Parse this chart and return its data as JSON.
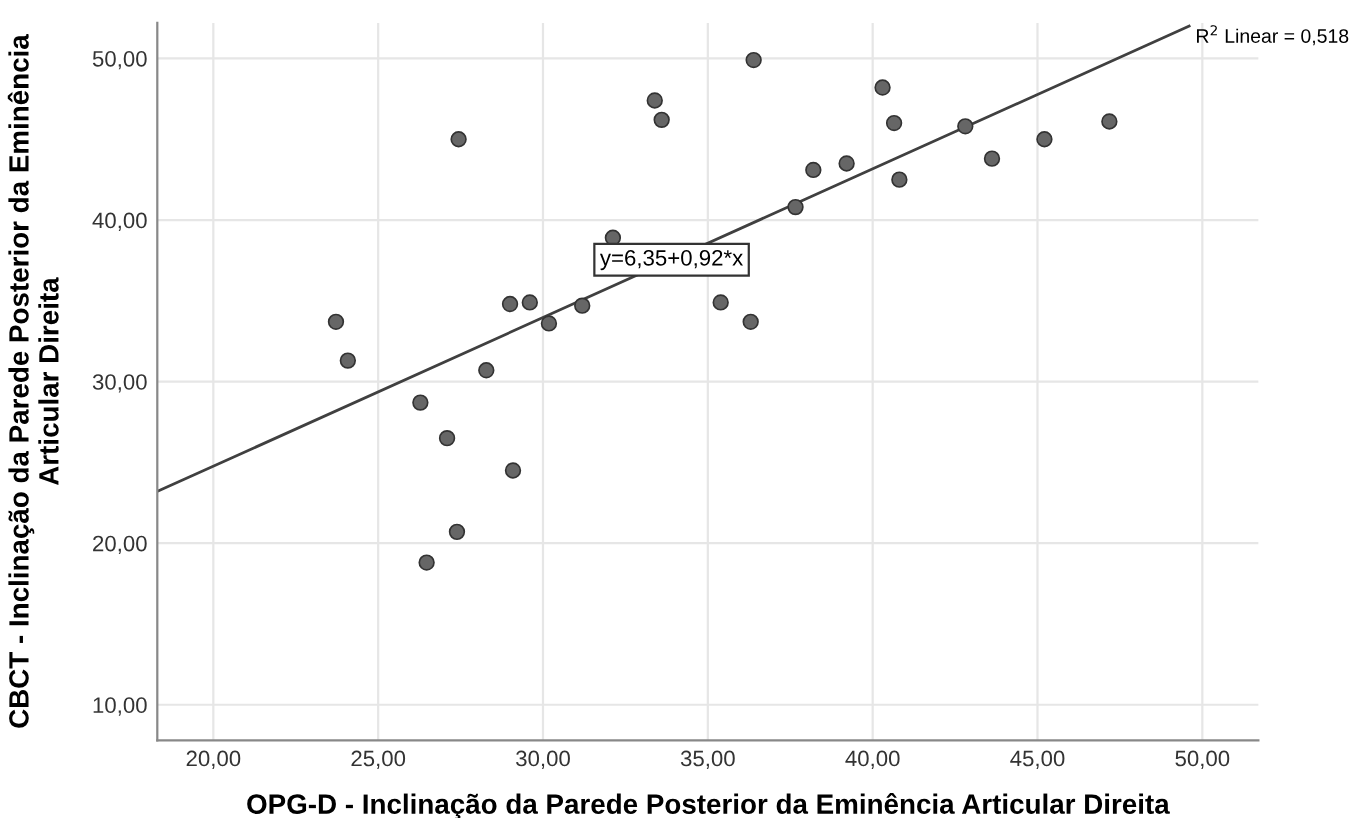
{
  "chart_data": {
    "type": "scatter",
    "xlabel": "OPG-D - Inclinação da Parede Posterior da Eminência Articular Direita",
    "ylabel": "CBCT - Inclinação da Parede Posterior da Eminência\nArticular Direita",
    "xlim": [
      18.3,
      51.7
    ],
    "ylim": [
      7.8,
      52.2
    ],
    "xticks": [
      {
        "value": 20,
        "label": "20,00"
      },
      {
        "value": 25,
        "label": "25,00"
      },
      {
        "value": 30,
        "label": "30,00"
      },
      {
        "value": 35,
        "label": "35,00"
      },
      {
        "value": 40,
        "label": "40,00"
      },
      {
        "value": 45,
        "label": "45,00"
      },
      {
        "value": 50,
        "label": "50,00"
      }
    ],
    "yticks": [
      {
        "value": 10,
        "label": "10,00"
      },
      {
        "value": 20,
        "label": "20,00"
      },
      {
        "value": 30,
        "label": "30,00"
      },
      {
        "value": 40,
        "label": "40,00"
      },
      {
        "value": 50,
        "label": "50,00"
      }
    ],
    "grid": true,
    "series": [
      {
        "marker": "circle",
        "color": "#666666",
        "x": [
          23.72,
          24.08,
          27.44,
          26.28,
          29.0,
          29.6,
          30.18,
          31.19,
          28.28,
          32.12,
          33.39,
          33.6,
          35.39,
          36.39,
          36.3,
          37.66,
          38.2,
          39.21,
          40.3,
          40.65,
          40.81,
          42.81,
          43.62,
          45.21,
          47.18,
          27.09,
          29.09,
          27.39,
          26.47
        ],
        "values": [
          33.7,
          31.3,
          45.0,
          28.7,
          34.8,
          34.9,
          33.6,
          34.7,
          30.7,
          38.9,
          47.4,
          46.2,
          34.9,
          49.9,
          33.7,
          40.8,
          43.1,
          43.5,
          48.2,
          46.0,
          42.5,
          45.8,
          43.8,
          45.0,
          46.1,
          26.5,
          24.5,
          20.7,
          18.8
        ]
      },
      {
        "type": "line",
        "color": "#404040",
        "x": [
          18.3,
          49.6
        ],
        "values": [
          23.2,
          52.0
        ]
      }
    ],
    "annotations": [
      {
        "text": "y=6,35+0,92*x",
        "x": 33.9,
        "y": 37.54
      },
      "R$^{2}$ Linear = 0,518"
    ]
  }
}
